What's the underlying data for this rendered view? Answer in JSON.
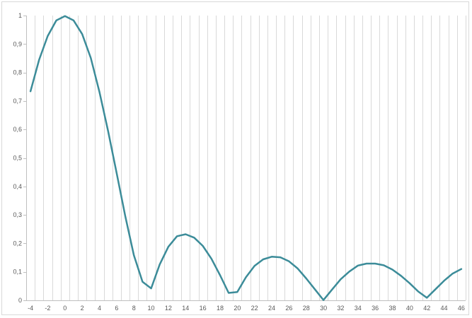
{
  "chart_data": {
    "type": "line",
    "title": "",
    "xlabel": "",
    "ylabel": "",
    "x": [
      -4,
      -3,
      -2,
      -1,
      0,
      1,
      2,
      3,
      4,
      5,
      6,
      7,
      8,
      9,
      10,
      11,
      12,
      13,
      14,
      15,
      16,
      17,
      18,
      19,
      20,
      21,
      22,
      23,
      24,
      25,
      26,
      27,
      28,
      29,
      30,
      31,
      32,
      33,
      34,
      35,
      36,
      37,
      38,
      39,
      40,
      41,
      42,
      43,
      44,
      45,
      46
    ],
    "series": [
      {
        "values": [
          0.734,
          0.845,
          0.928,
          0.983,
          0.998,
          0.983,
          0.935,
          0.851,
          0.732,
          0.595,
          0.446,
          0.296,
          0.158,
          0.065,
          0.042,
          0.126,
          0.188,
          0.225,
          0.232,
          0.22,
          0.191,
          0.146,
          0.088,
          0.026,
          0.029,
          0.081,
          0.121,
          0.144,
          0.153,
          0.151,
          0.137,
          0.112,
          0.077,
          0.039,
          0.001,
          0.038,
          0.074,
          0.101,
          0.122,
          0.129,
          0.129,
          0.123,
          0.108,
          0.086,
          0.06,
          0.031,
          0.009,
          0.039,
          0.069,
          0.094,
          0.11
        ]
      }
    ],
    "xlim": [
      -4.5,
      46.5
    ],
    "ylim": [
      0,
      1
    ],
    "x_tick_labels": [
      "-4",
      "-2",
      "0",
      "2",
      "4",
      "6",
      "8",
      "10",
      "12",
      "14",
      "16",
      "18",
      "20",
      "22",
      "24",
      "26",
      "28",
      "30",
      "32",
      "34",
      "36",
      "38",
      "40",
      "42",
      "44",
      "46"
    ],
    "y_tick_labels": [
      "0",
      "0,1",
      "0,2",
      "0,3",
      "0,4",
      "0,5",
      "0,6",
      "0,7",
      "0,8",
      "0,9",
      "1"
    ],
    "grid": {
      "vertical": true,
      "horizontal": false
    },
    "legend": "none",
    "colors": {
      "line": "#3c8c99",
      "grid": "#d9d9d9",
      "axis": "#bfbfbf",
      "tick_text": "#595959"
    }
  }
}
